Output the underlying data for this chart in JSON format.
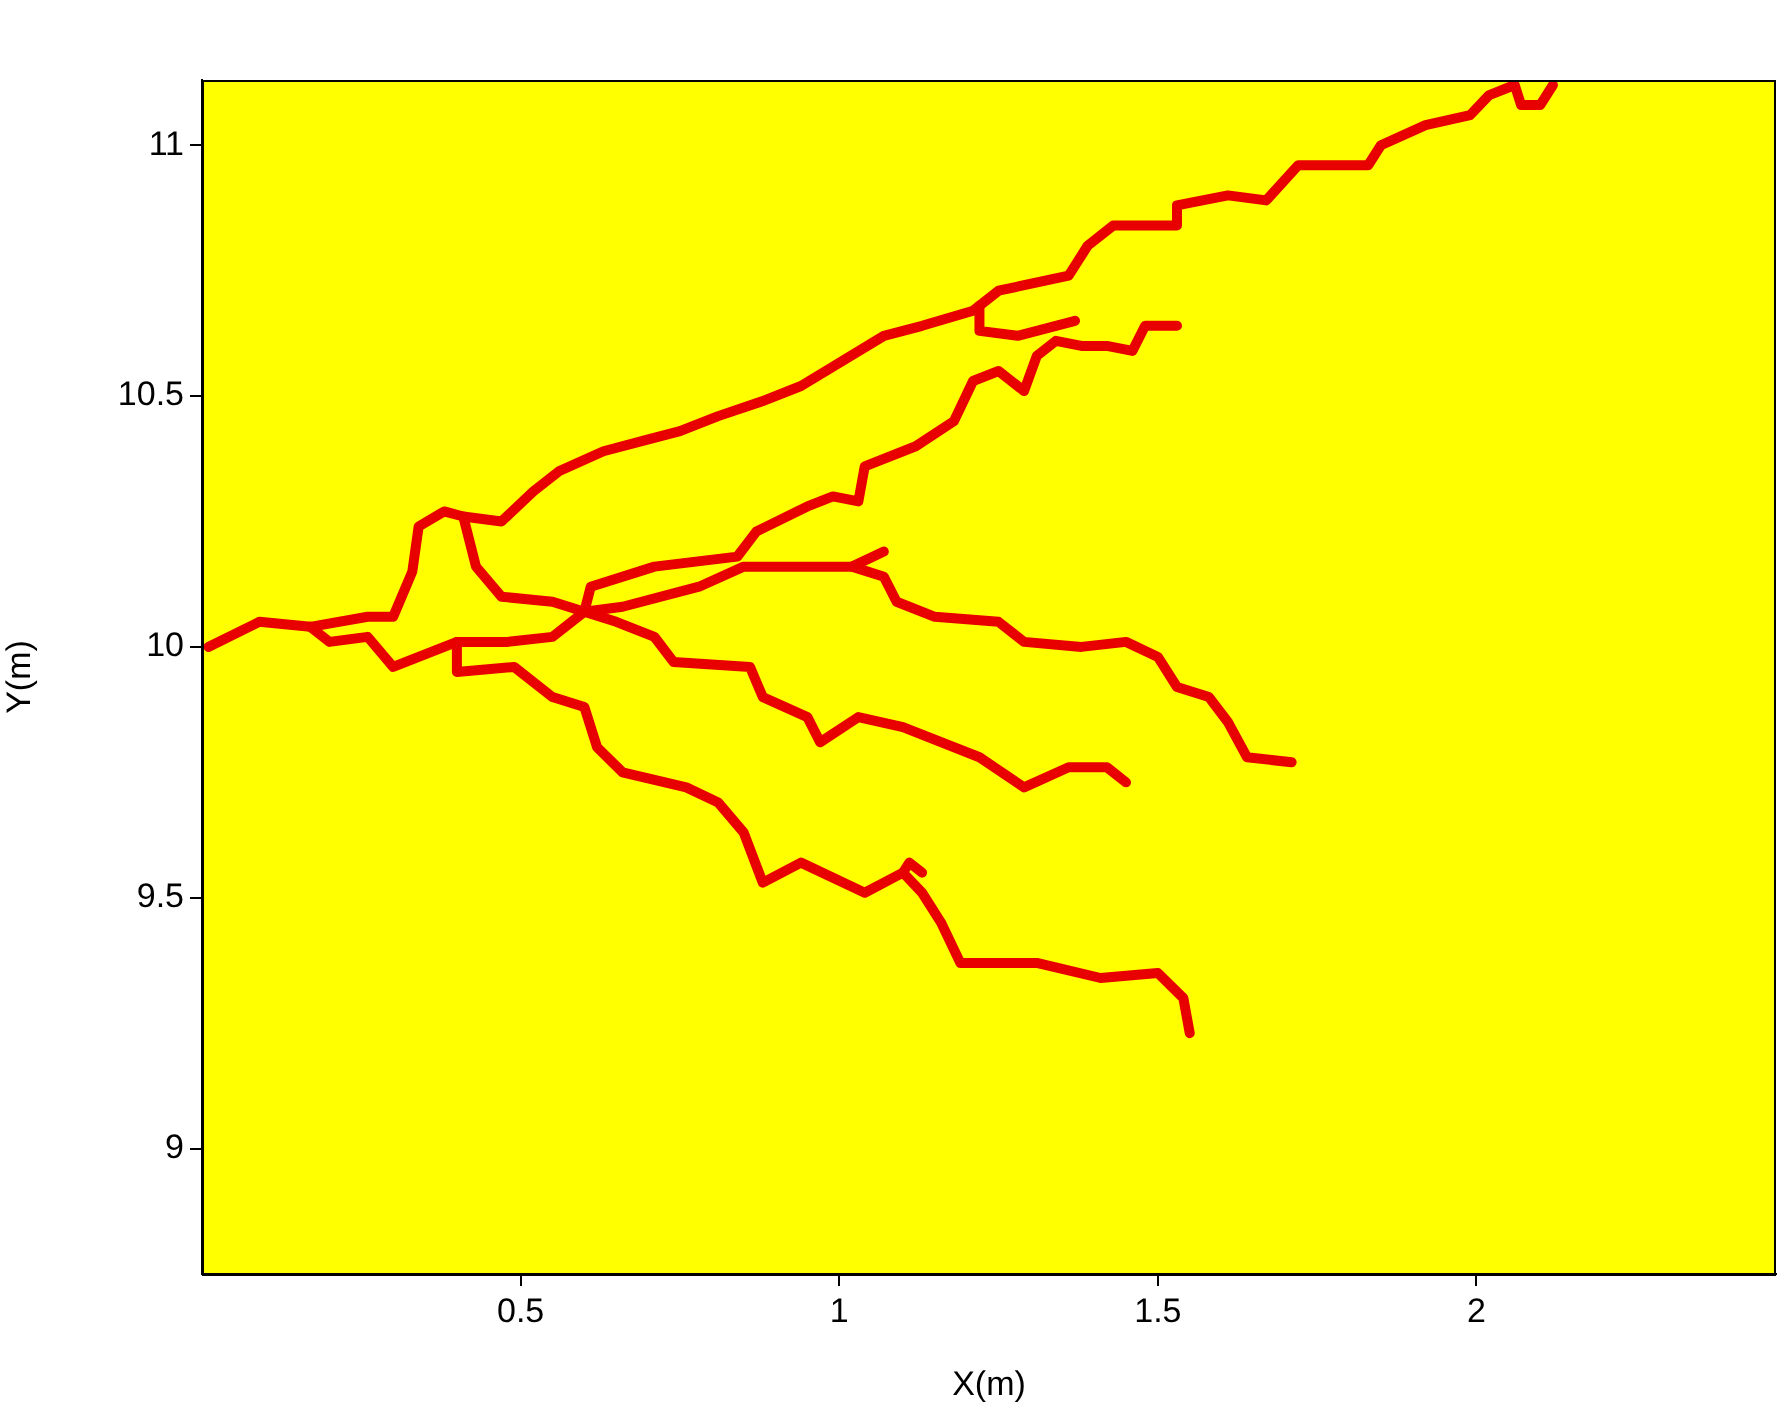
{
  "chart_data": {
    "type": "line",
    "xlabel": "X(m)",
    "ylabel": "Y(m)",
    "xlim": [
      0,
      2.47
    ],
    "ylim": [
      8.75,
      11.13
    ],
    "xticks": [
      0.5,
      1,
      1.5,
      2
    ],
    "yticks": [
      9,
      9.5,
      10,
      10.5,
      11
    ],
    "grid": false,
    "legend": false,
    "marker": "none",
    "line_style": "solid",
    "series": [
      {
        "color": "#e80000",
        "x": [
          0.01,
          0.09,
          0.17,
          0.26,
          0.3,
          0.31,
          0.33,
          0.34,
          0.38,
          0.41,
          0.47,
          0.52,
          0.56,
          0.63,
          0.69,
          0.75,
          0.81,
          0.88,
          0.94,
          1.07,
          1.13,
          1.21,
          1.25,
          1.36,
          1.39,
          1.43,
          1.53,
          1.53,
          1.61,
          1.67,
          1.72,
          1.83,
          1.85,
          1.92,
          1.99,
          2.02,
          2.06,
          2.07,
          2.1,
          2.12
        ],
        "values": [
          10.0,
          10.05,
          10.04,
          10.06,
          10.06,
          10.09,
          10.15,
          10.24,
          10.27,
          10.26,
          10.25,
          10.31,
          10.35,
          10.39,
          10.41,
          10.43,
          10.46,
          10.49,
          10.52,
          10.62,
          10.64,
          10.67,
          10.71,
          10.74,
          10.8,
          10.84,
          10.84,
          10.88,
          10.9,
          10.89,
          10.96,
          10.96,
          11.0,
          11.04,
          11.06,
          11.1,
          11.12,
          11.08,
          11.08,
          11.12
        ]
      },
      {
        "color": "#e80000",
        "x": [
          1.22,
          1.22,
          1.28,
          1.34,
          1.37
        ],
        "values": [
          10.68,
          10.63,
          10.62,
          10.64,
          10.65
        ]
      },
      {
        "color": "#e80000",
        "x": [
          0.41,
          0.43,
          0.47,
          0.55,
          0.6,
          0.61,
          0.71,
          0.84,
          0.87,
          0.95,
          0.99,
          1.03,
          1.04,
          1.12,
          1.18,
          1.21,
          1.25,
          1.29,
          1.31,
          1.34,
          1.38,
          1.42,
          1.46,
          1.48,
          1.53
        ],
        "values": [
          10.26,
          10.16,
          10.1,
          10.09,
          10.07,
          10.12,
          10.16,
          10.18,
          10.23,
          10.28,
          10.3,
          10.29,
          10.36,
          10.4,
          10.45,
          10.53,
          10.55,
          10.51,
          10.58,
          10.61,
          10.6,
          10.6,
          10.59,
          10.64,
          10.64
        ]
      },
      {
        "color": "#e80000",
        "x": [
          0.17,
          0.2,
          0.26,
          0.3,
          0.38,
          0.4,
          0.48,
          0.55,
          0.6,
          0.66,
          0.78,
          0.85,
          0.92,
          0.99,
          1.02,
          1.07,
          1.09,
          1.15,
          1.25,
          1.29,
          1.38,
          1.45,
          1.5,
          1.53,
          1.58,
          1.61,
          1.64,
          1.71
        ],
        "values": [
          10.04,
          10.01,
          10.02,
          9.96,
          10.0,
          10.01,
          10.01,
          10.02,
          10.07,
          10.08,
          10.12,
          10.16,
          10.16,
          10.16,
          10.16,
          10.14,
          10.09,
          10.06,
          10.05,
          10.01,
          10.0,
          10.01,
          9.98,
          9.92,
          9.9,
          9.85,
          9.78,
          9.77
        ]
      },
      {
        "color": "#e80000",
        "x": [
          1.02,
          1.07
        ],
        "values": [
          10.16,
          10.19
        ]
      },
      {
        "color": "#e80000",
        "x": [
          0.6,
          0.65,
          0.71,
          0.74,
          0.86,
          0.88,
          0.95,
          0.97,
          1.03,
          1.1,
          1.22,
          1.29,
          1.36,
          1.42,
          1.45
        ],
        "values": [
          10.07,
          10.05,
          10.02,
          9.97,
          9.96,
          9.9,
          9.86,
          9.81,
          9.86,
          9.84,
          9.78,
          9.72,
          9.76,
          9.76,
          9.73
        ]
      },
      {
        "color": "#e80000",
        "x": [
          0.4,
          0.4,
          0.49,
          0.55,
          0.6,
          0.62,
          0.66,
          0.76,
          0.81,
          0.85,
          0.88,
          0.94,
          1.04,
          1.1,
          1.13,
          1.16,
          1.19,
          1.25,
          1.31,
          1.41,
          1.5,
          1.54,
          1.55
        ],
        "values": [
          10.01,
          9.95,
          9.96,
          9.9,
          9.88,
          9.8,
          9.75,
          9.72,
          9.69,
          9.63,
          9.53,
          9.57,
          9.51,
          9.55,
          9.51,
          9.45,
          9.37,
          9.37,
          9.37,
          9.34,
          9.35,
          9.3,
          9.23
        ]
      },
      {
        "color": "#e80000",
        "x": [
          1.1,
          1.11,
          1.13
        ],
        "values": [
          9.55,
          9.57,
          9.55
        ]
      }
    ]
  }
}
